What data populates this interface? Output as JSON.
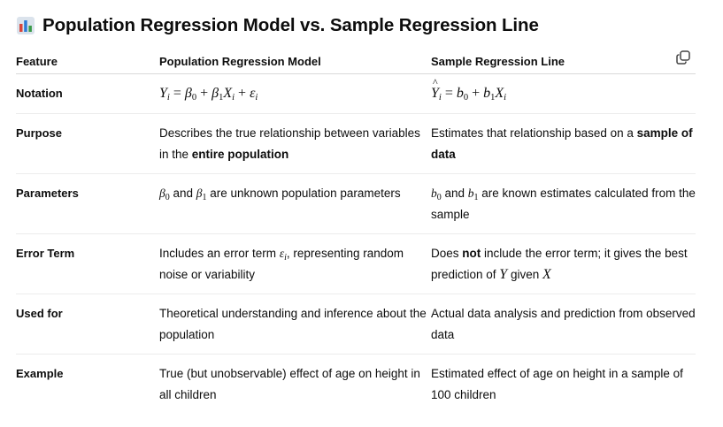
{
  "title": "Population Regression Model vs. Sample Regression Line",
  "icons": {
    "title_icon": "bar-chart-icon",
    "copy_icon": "copy-icon"
  },
  "table": {
    "headers": [
      "Feature",
      "Population Regression Model",
      "Sample Regression Line"
    ],
    "rows": [
      {
        "feature": "Notation",
        "population": "Yi = β0 + β1Xi + εi",
        "sample": "Ŷi = b0 + b1Xi"
      },
      {
        "feature": "Purpose",
        "population": {
          "pre": "Describes the true relationship between variables in the ",
          "bold": "entire population"
        },
        "sample": {
          "pre": "Estimates that relationship based on a ",
          "bold": "sample of data"
        }
      },
      {
        "feature": "Parameters",
        "population": {
          "m1": "β",
          "m1_sub": "0",
          "mid": " and ",
          "m2": "β",
          "m2_sub": "1",
          "post": " are unknown population parameters"
        },
        "sample": {
          "m1": "b",
          "m1_sub": "0",
          "mid": " and ",
          "m2": "b",
          "m2_sub": "1",
          "post": " are known estimates calculated from the sample"
        }
      },
      {
        "feature": "Error Term",
        "population": {
          "pre": "Includes an error term ",
          "m": "ε",
          "m_sub": "i",
          "post": ", representing random noise or variability"
        },
        "sample": {
          "pre": "Does ",
          "bold": "not",
          "mid": " include the error term; it gives the best prediction of ",
          "m1": "Y",
          "mid2": " given ",
          "m2": "X"
        }
      },
      {
        "feature": "Used for",
        "population": "Theoretical understanding and inference about the population",
        "sample": "Actual data analysis and prediction from observed data"
      },
      {
        "feature": "Example",
        "population": "True (but unobservable) effect of age on height in all children",
        "sample": "Estimated effect of age on height in a sample of 100 children"
      }
    ]
  }
}
